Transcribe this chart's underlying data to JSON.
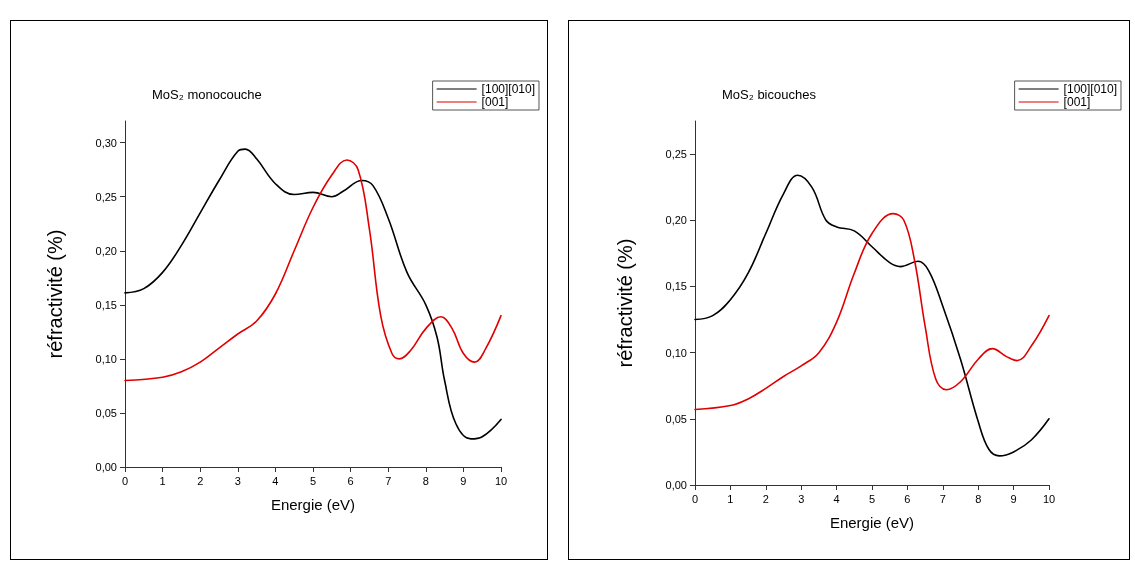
{
  "chart_data": [
    {
      "type": "line",
      "title": "MoS₂ monocouche",
      "xlabel": "Energie (eV)",
      "ylabel": "réfractivité (%)",
      "legend": "top right",
      "grid": false,
      "marker": "none",
      "line_style": "solid",
      "xlim": [
        0,
        10
      ],
      "xticks": [
        0,
        1,
        2,
        3,
        4,
        5,
        6,
        7,
        8,
        9,
        10
      ],
      "ylim": [
        0,
        0.32
      ],
      "yticks": [
        {
          "value": 0,
          "label": "0,00"
        },
        {
          "value": 0.05,
          "label": "0,05"
        },
        {
          "value": 0.1,
          "label": "0,10"
        },
        {
          "value": 0.15,
          "label": "0,15"
        },
        {
          "value": 0.2,
          "label": "0,20"
        },
        {
          "value": 0.25,
          "label": "0,25"
        },
        {
          "value": 0.3,
          "label": "0,30"
        }
      ],
      "series": [
        {
          "name": "[100][010]",
          "color": "#000000",
          "x": [
            0,
            0.5,
            1,
            1.5,
            2,
            2.5,
            3,
            3.2,
            3.5,
            4,
            4.5,
            5,
            5.5,
            5.8,
            6.3,
            6.6,
            7,
            7.5,
            8,
            8.3,
            8.5,
            8.8,
            9.2,
            9.5,
            10
          ],
          "values": [
            0.161,
            0.165,
            0.18,
            0.205,
            0.235,
            0.265,
            0.292,
            0.294,
            0.285,
            0.262,
            0.252,
            0.254,
            0.25,
            0.255,
            0.265,
            0.26,
            0.23,
            0.18,
            0.15,
            0.12,
            0.08,
            0.04,
            0.026,
            0.028,
            0.044
          ]
        },
        {
          "name": "[001]",
          "color": "#e00000",
          "x": [
            0,
            1,
            1.5,
            2,
            2.5,
            3,
            3.5,
            4,
            4.5,
            5,
            5.5,
            5.9,
            6.2,
            6.5,
            6.8,
            7.1,
            7.3,
            7.6,
            8,
            8.4,
            8.7,
            9,
            9.3,
            9.6,
            10
          ],
          "values": [
            0.08,
            0.083,
            0.088,
            0.097,
            0.11,
            0.123,
            0.135,
            0.16,
            0.2,
            0.24,
            0.27,
            0.284,
            0.275,
            0.22,
            0.14,
            0.105,
            0.1,
            0.108,
            0.128,
            0.139,
            0.128,
            0.105,
            0.097,
            0.11,
            0.14
          ]
        }
      ]
    },
    {
      "type": "line",
      "title": "MoS₂ bicouches",
      "xlabel": "Energie (eV)",
      "ylabel": "réfractivité (%)",
      "legend": "top right",
      "grid": false,
      "marker": "none",
      "line_style": "solid",
      "xlim": [
        0,
        10
      ],
      "xticks": [
        0,
        1,
        2,
        3,
        4,
        5,
        6,
        7,
        8,
        9,
        10
      ],
      "ylim": [
        0,
        0.275
      ],
      "yticks": [
        {
          "value": 0,
          "label": "0,00"
        },
        {
          "value": 0.05,
          "label": "0,05"
        },
        {
          "value": 0.1,
          "label": "0,10"
        },
        {
          "value": 0.15,
          "label": "0,15"
        },
        {
          "value": 0.2,
          "label": "0,20"
        },
        {
          "value": 0.25,
          "label": "0,25"
        }
      ],
      "series": [
        {
          "name": "[100][010]",
          "color": "#000000",
          "x": [
            0,
            0.5,
            1,
            1.5,
            2,
            2.5,
            2.9,
            3.3,
            3.7,
            4,
            4.5,
            5,
            5.5,
            5.8,
            6.3,
            6.6,
            7,
            7.5,
            8,
            8.3,
            8.6,
            9,
            9.5,
            10
          ],
          "values": [
            0.125,
            0.128,
            0.14,
            0.16,
            0.19,
            0.22,
            0.234,
            0.225,
            0.2,
            0.195,
            0.192,
            0.18,
            0.168,
            0.165,
            0.169,
            0.162,
            0.135,
            0.095,
            0.048,
            0.027,
            0.022,
            0.025,
            0.034,
            0.05
          ]
        },
        {
          "name": "[001]",
          "color": "#e00000",
          "x": [
            0,
            1,
            1.5,
            2,
            2.5,
            3,
            3.5,
            4,
            4.5,
            5,
            5.6,
            5.9,
            6.2,
            6.5,
            6.8,
            7.1,
            7.5,
            8,
            8.4,
            8.8,
            9.1,
            9.5,
            10
          ],
          "values": [
            0.057,
            0.06,
            0.065,
            0.073,
            0.082,
            0.09,
            0.1,
            0.123,
            0.16,
            0.19,
            0.205,
            0.2,
            0.17,
            0.12,
            0.08,
            0.072,
            0.078,
            0.095,
            0.103,
            0.097,
            0.094,
            0.105,
            0.128
          ]
        }
      ]
    }
  ]
}
